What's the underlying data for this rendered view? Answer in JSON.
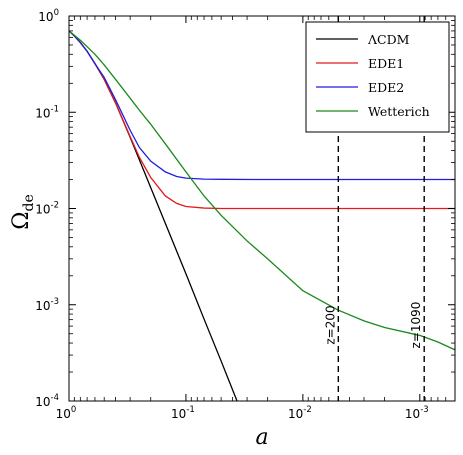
{
  "chart_data": {
    "type": "line",
    "xlabel": "a",
    "ylabel_main": "Ω",
    "ylabel_sub": "de",
    "x_scale": "log",
    "x_direction": "decreasing",
    "y_scale": "log",
    "xlim": [
      1.0,
      0.0005
    ],
    "ylim": [
      0.0001,
      1.0
    ],
    "grid": false,
    "legend_position": "top-right",
    "x_ticks": [
      {
        "value": 1,
        "base": "10",
        "exp": "0"
      },
      {
        "value": 0.1,
        "base": "10",
        "exp": "-1"
      },
      {
        "value": 0.01,
        "base": "10",
        "exp": "-2"
      },
      {
        "value": 0.001,
        "base": "10",
        "exp": "-3"
      }
    ],
    "y_ticks": [
      {
        "value": 1,
        "base": "10",
        "exp": "0"
      },
      {
        "value": 0.1,
        "base": "10",
        "exp": "-1"
      },
      {
        "value": 0.01,
        "base": "10",
        "exp": "-2"
      },
      {
        "value": 0.001,
        "base": "10",
        "exp": "-3"
      },
      {
        "value": 0.0001,
        "base": "10",
        "exp": "-4"
      }
    ],
    "series": [
      {
        "name": "ΛCDM",
        "color": "#000000",
        "x": [
          1.0,
          0.9,
          0.8,
          0.7,
          0.6,
          0.5,
          0.4,
          0.3,
          0.25,
          0.2,
          0.15,
          0.1,
          0.07,
          0.05,
          0.035
        ],
        "y": [
          0.7,
          0.62,
          0.53,
          0.43,
          0.32,
          0.22,
          0.125,
          0.055,
          0.032,
          0.0165,
          0.007,
          0.0021,
          0.00071,
          0.00026,
          8.75e-05
        ]
      },
      {
        "name": "EDE1",
        "color": "#e41a1c",
        "x": [
          1.0,
          0.9,
          0.8,
          0.7,
          0.6,
          0.5,
          0.4,
          0.3,
          0.25,
          0.2,
          0.15,
          0.12,
          0.1,
          0.07,
          0.05,
          0.02,
          0.01,
          0.005,
          0.002,
          0.001,
          0.0005
        ],
        "y": [
          0.7,
          0.62,
          0.53,
          0.43,
          0.32,
          0.22,
          0.125,
          0.056,
          0.034,
          0.021,
          0.0135,
          0.0113,
          0.0105,
          0.0101,
          0.01,
          0.01,
          0.01,
          0.01,
          0.01,
          0.01,
          0.01
        ]
      },
      {
        "name": "EDE2",
        "color": "#1f1fe0",
        "x": [
          1.0,
          0.9,
          0.8,
          0.7,
          0.6,
          0.5,
          0.4,
          0.3,
          0.25,
          0.2,
          0.15,
          0.12,
          0.1,
          0.07,
          0.05,
          0.02,
          0.01,
          0.005,
          0.002,
          0.001,
          0.0005
        ],
        "y": [
          0.7,
          0.62,
          0.53,
          0.43,
          0.32,
          0.23,
          0.135,
          0.065,
          0.043,
          0.031,
          0.024,
          0.0215,
          0.0207,
          0.0202,
          0.0201,
          0.02,
          0.02,
          0.02,
          0.02,
          0.02,
          0.02
        ]
      },
      {
        "name": "Wetterich",
        "color": "#1a8a1a",
        "x": [
          1.0,
          0.9,
          0.8,
          0.7,
          0.6,
          0.5,
          0.4,
          0.3,
          0.25,
          0.2,
          0.15,
          0.1,
          0.07,
          0.05,
          0.03,
          0.02,
          0.01,
          0.005,
          0.003,
          0.002,
          0.001,
          0.0007,
          0.0005
        ],
        "y": [
          0.7,
          0.63,
          0.56,
          0.48,
          0.4,
          0.31,
          0.22,
          0.14,
          0.105,
          0.075,
          0.047,
          0.024,
          0.0135,
          0.0085,
          0.0046,
          0.003,
          0.0014,
          0.00088,
          0.00068,
          0.00058,
          0.00048,
          0.00041,
          0.00034
        ]
      }
    ],
    "vlines": [
      {
        "x": 0.004975,
        "label": "z=200"
      },
      {
        "x": 0.000917,
        "label": "z=1090"
      }
    ]
  }
}
